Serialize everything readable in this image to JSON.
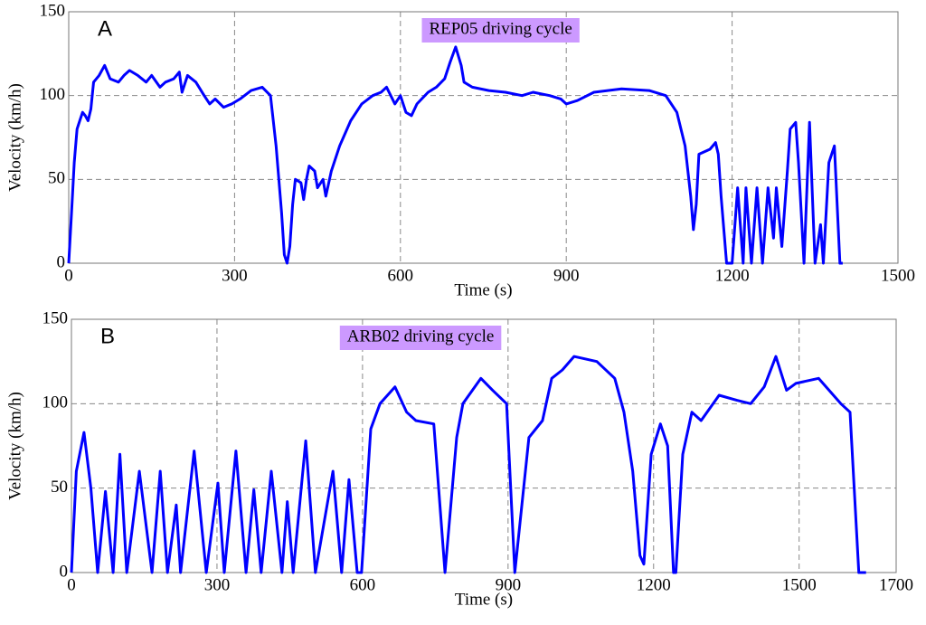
{
  "chart_data": [
    {
      "type": "line",
      "panel": "A",
      "title": "REP05 driving cycle",
      "x_label": "Time (s)",
      "y_label": "Velocity (km/h)",
      "xlim": [
        0,
        1500
      ],
      "ylim": [
        0,
        150
      ],
      "xticks": [
        0,
        300,
        600,
        900,
        1200,
        1500
      ],
      "yticks": [
        0,
        50,
        100,
        150
      ],
      "grid": true,
      "x": [
        0,
        5,
        10,
        15,
        20,
        25,
        30,
        35,
        40,
        45,
        55,
        65,
        75,
        90,
        100,
        110,
        125,
        140,
        150,
        165,
        175,
        190,
        200,
        205,
        215,
        230,
        245,
        255,
        265,
        280,
        295,
        310,
        330,
        350,
        365,
        375,
        385,
        390,
        395,
        400,
        405,
        410,
        420,
        425,
        430,
        435,
        445,
        450,
        460,
        465,
        475,
        490,
        510,
        530,
        550,
        565,
        575,
        590,
        600,
        610,
        620,
        630,
        650,
        665,
        680,
        690,
        700,
        710,
        715,
        730,
        760,
        790,
        820,
        840,
        870,
        890,
        900,
        920,
        950,
        1000,
        1050,
        1080,
        1100,
        1115,
        1125,
        1130,
        1135,
        1140,
        1160,
        1170,
        1175,
        1180,
        1190,
        1200,
        1210,
        1220,
        1225,
        1235,
        1245,
        1255,
        1265,
        1275,
        1280,
        1290,
        1300,
        1305,
        1315,
        1320,
        1330,
        1340,
        1350,
        1360,
        1365,
        1375,
        1385,
        1395,
        1400
      ],
      "series": [
        {
          "color": "#0000ff",
          "values": [
            0,
            30,
            60,
            80,
            85,
            90,
            88,
            85,
            92,
            108,
            112,
            118,
            110,
            108,
            112,
            115,
            112,
            108,
            112,
            105,
            108,
            110,
            114,
            102,
            112,
            108,
            100,
            95,
            98,
            93,
            95,
            98,
            103,
            105,
            100,
            70,
            30,
            5,
            0,
            10,
            35,
            50,
            48,
            38,
            50,
            58,
            55,
            45,
            50,
            40,
            55,
            70,
            85,
            95,
            100,
            102,
            105,
            95,
            100,
            90,
            88,
            95,
            102,
            105,
            110,
            120,
            129,
            118,
            108,
            105,
            103,
            102,
            100,
            102,
            100,
            98,
            95,
            97,
            102,
            104,
            103,
            100,
            90,
            70,
            40,
            20,
            35,
            65,
            68,
            72,
            65,
            40,
            0,
            0,
            45,
            0,
            45,
            0,
            45,
            0,
            45,
            15,
            45,
            10,
            55,
            80,
            84,
            60,
            0,
            84,
            0,
            23,
            0,
            60,
            70,
            0,
            0
          ]
        }
      ]
    },
    {
      "type": "line",
      "panel": "B",
      "title": "ARB02 driving cycle",
      "x_label": "Time (s)",
      "y_label": "Velocity (km/h)",
      "xlim": [
        0,
        1700
      ],
      "ylim": [
        0,
        150
      ],
      "xticks": [
        0,
        300,
        600,
        900,
        1200,
        1500,
        1700
      ],
      "yticks": [
        0,
        50,
        100,
        150
      ],
      "grid": true,
      "x": [
        0,
        10,
        26,
        40,
        54,
        70,
        86,
        100,
        114,
        140,
        166,
        183,
        198,
        216,
        225,
        253,
        278,
        302,
        315,
        339,
        360,
        376,
        391,
        412,
        434,
        445,
        457,
        483,
        503,
        539,
        557,
        572,
        589,
        598,
        617,
        636,
        667,
        691,
        710,
        747,
        770,
        794,
        807,
        844,
        868,
        897,
        914,
        943,
        971,
        990,
        1012,
        1036,
        1083,
        1120,
        1139,
        1157,
        1172,
        1180,
        1195,
        1214,
        1229,
        1241,
        1246,
        1260,
        1279,
        1298,
        1335,
        1372,
        1400,
        1428,
        1452,
        1474,
        1493,
        1540,
        1586,
        1605,
        1623,
        1638
      ],
      "series": [
        {
          "color": "#0000ff",
          "values": [
            0,
            60,
            83,
            50,
            0,
            48,
            0,
            70,
            0,
            60,
            0,
            60,
            0,
            40,
            0,
            72,
            0,
            53,
            0,
            72,
            0,
            49,
            0,
            60,
            0,
            42,
            0,
            78,
            0,
            60,
            0,
            55,
            0,
            0,
            85,
            100,
            110,
            95,
            90,
            88,
            0,
            80,
            100,
            115,
            108,
            100,
            0,
            80,
            90,
            115,
            120,
            128,
            125,
            115,
            95,
            60,
            10,
            5,
            70,
            88,
            75,
            0,
            0,
            70,
            95,
            90,
            105,
            102,
            100,
            110,
            128,
            108,
            112,
            115,
            100,
            95,
            0,
            0
          ]
        }
      ]
    }
  ]
}
